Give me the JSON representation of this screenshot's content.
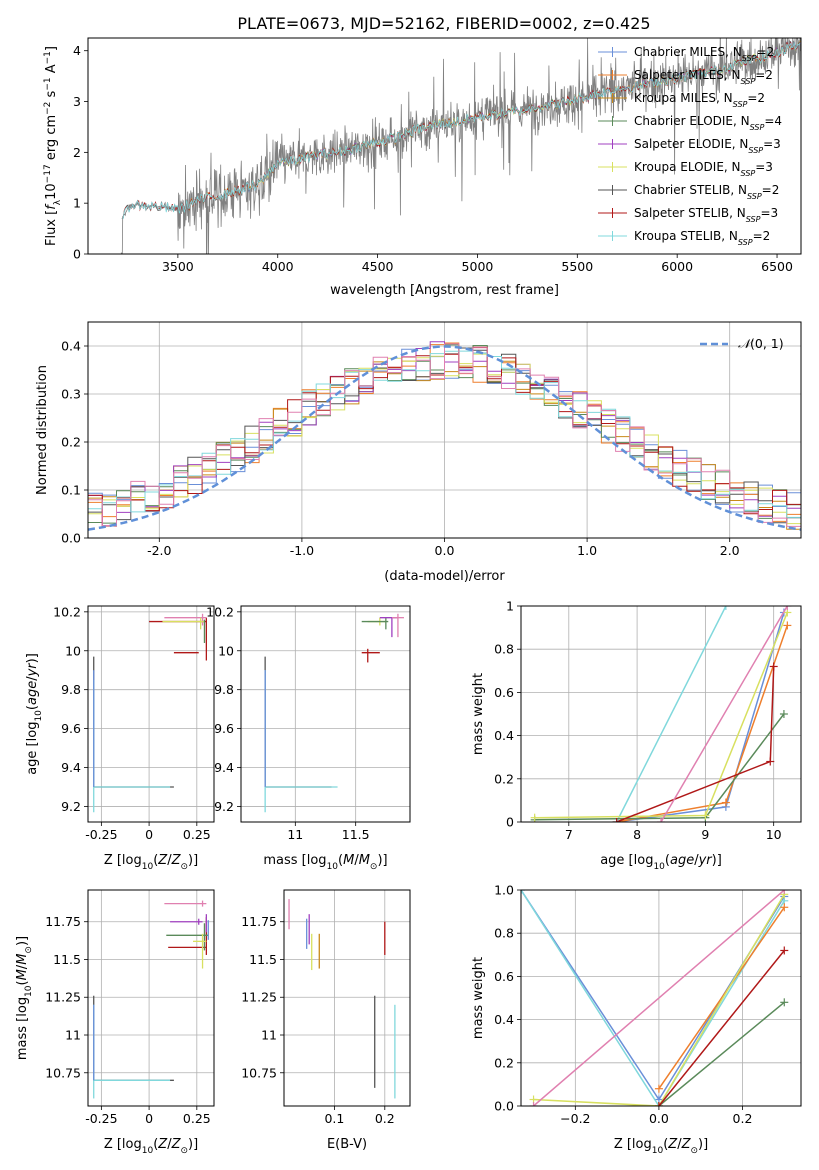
{
  "figure_title": "PLATE=0673, MJD=52162, FIBERID=0002, z=0.425",
  "colors": {
    "Chabrier MILES": "#6a8fd8",
    "Salpeter MILES": "#ee7f2d",
    "Kroupa MILES": "#c98a1a",
    "Chabrier ELODIE": "#5a8a5a",
    "Salpeter ELODIE": "#a040c0",
    "Kroupa ELODIE": "#d8e060",
    "Chabrier STELIB": "#555555",
    "Salpeter STELIB": "#b01818",
    "Kroupa STELIB": "#80d8dc",
    "Pink": "#e080b0",
    "Data": "#808080",
    "Normal": "#6090d8"
  },
  "chart_data": [
    {
      "id": "spectrum",
      "type": "line",
      "title": "PLATE=0673, MJD=52162, FIBERID=0002, z=0.425",
      "xlabel": "wavelength [Angstrom, rest frame]",
      "ylabel": "Flux [f_λ 10^-17 erg cm^-2 s^-1 A^-1]",
      "xlim": [
        3050,
        6620
      ],
      "ylim": [
        0,
        4.25
      ],
      "xticks": [
        3500,
        4000,
        4500,
        5000,
        5500,
        6000,
        6500
      ],
      "yticks": [
        0,
        1,
        2,
        3,
        4
      ],
      "legend": [
        "Chabrier MILES, N_SSP=2",
        "Salpeter MILES, N_SSP=2",
        "Kroupa MILES, N_SSP=2",
        "Chabrier ELODIE, N_SSP=4",
        "Salpeter ELODIE, N_SSP=3",
        "Kroupa ELODIE, N_SSP=3",
        "Chabrier STELIB, N_SSP=2",
        "Salpeter STELIB, N_SSP=3",
        "Kroupa STELIB, N_SSP=2"
      ],
      "legend_location": "right",
      "continuum": {
        "x": [
          3220,
          3260,
          3300,
          3400,
          3500,
          3600,
          3700,
          3800,
          3900,
          4000,
          4100,
          4200,
          4300,
          4400,
          4500,
          4600,
          4700,
          4800,
          4900,
          5000,
          5100,
          5200,
          5300,
          5400,
          5500,
          5600,
          5700,
          5800,
          5900,
          6000,
          6100,
          6200,
          6300,
          6400,
          6500,
          6560
        ],
        "y": [
          0.7,
          0.95,
          0.97,
          0.93,
          0.88,
          1.05,
          1.15,
          1.25,
          1.35,
          1.8,
          1.85,
          1.95,
          2.0,
          2.1,
          2.2,
          2.3,
          2.45,
          2.55,
          2.6,
          2.7,
          2.75,
          2.8,
          2.9,
          2.95,
          3.05,
          3.15,
          3.25,
          3.3,
          3.4,
          3.45,
          3.55,
          3.6,
          3.75,
          3.85,
          3.95,
          4.1
        ]
      },
      "noise_start": 3500
    },
    {
      "id": "residual-hist",
      "type": "area",
      "xlabel": "(data-model)/error",
      "ylabel": "Normed distribution",
      "xlim": [
        -2.5,
        2.5
      ],
      "ylim": [
        0,
        0.45
      ],
      "xticks": [
        -2,
        -1,
        0,
        1,
        2
      ],
      "yticks": [
        0.0,
        0.1,
        0.2,
        0.3,
        0.4
      ],
      "legend": [
        "N(0, 1)"
      ],
      "legend_location": "upper right",
      "bin_width": 0.1
    },
    {
      "id": "age-vs-Z",
      "type": "scatter",
      "xlabel": "Z [log10(Z/Z⊙)]",
      "ylabel": "age [log10(age/yr)]",
      "xlim": [
        -0.32,
        0.34
      ],
      "ylim": [
        9.12,
        10.23
      ],
      "xticks": [
        -0.25,
        0.0,
        0.25
      ],
      "yticks": [
        9.2,
        9.4,
        9.6,
        9.8,
        10.0,
        10.2
      ]
    },
    {
      "id": "age-vs-mass",
      "type": "scatter",
      "xlabel": "mass [log10(M/M⊙)]",
      "ylabel": "",
      "xlim": [
        10.55,
        11.95
      ],
      "ylim": [
        9.12,
        10.23
      ],
      "xticks": [
        11.0,
        11.5
      ],
      "yticks": [
        9.2,
        9.4,
        9.6,
        9.8,
        10.0,
        10.2
      ]
    },
    {
      "id": "weight-vs-age",
      "type": "line",
      "xlabel": "age [log10(age/yr)]",
      "ylabel": "mass weight",
      "xlim": [
        6.3,
        10.4
      ],
      "ylim": [
        0,
        1
      ],
      "xticks": [
        7,
        8,
        9,
        10
      ],
      "yticks": [
        0.0,
        0.2,
        0.4,
        0.6,
        0.8,
        1.0
      ],
      "series": [
        {
          "color": "Chabrier MILES",
          "x": [
            7.7,
            9.3,
            10.15
          ],
          "y": [
            0.0,
            0.07,
            0.97
          ]
        },
        {
          "color": "Salpeter MILES",
          "x": [
            7.7,
            9.3,
            10.2
          ],
          "y": [
            0.0,
            0.09,
            0.91
          ]
        },
        {
          "color": "Kroupa STELIB",
          "x": [
            7.7,
            9.3
          ],
          "y": [
            0.0,
            1.0
          ]
        },
        {
          "color": "Chabrier ELODIE",
          "x": [
            6.5,
            9.0,
            10.15
          ],
          "y": [
            0.01,
            0.02,
            0.5
          ]
        },
        {
          "color": "Kroupa ELODIE",
          "x": [
            6.5,
            9.0,
            10.2
          ],
          "y": [
            0.02,
            0.03,
            0.97
          ]
        },
        {
          "color": "Salpeter STELIB",
          "x": [
            7.7,
            9.95,
            10.0
          ],
          "y": [
            0.0,
            0.28,
            0.72
          ]
        },
        {
          "color": "Pink",
          "x": [
            8.35,
            10.2
          ],
          "y": [
            0.0,
            1.0
          ]
        }
      ]
    },
    {
      "id": "mass-vs-Z",
      "type": "scatter",
      "xlabel": "Z [log10(Z/Z⊙)]",
      "ylabel": "mass [log10(M/M⊙)]",
      "xlim": [
        -0.32,
        0.34
      ],
      "ylim": [
        10.53,
        11.96
      ],
      "xticks": [
        -0.25,
        0.0,
        0.25
      ],
      "yticks": [
        10.75,
        11.0,
        11.25,
        11.5,
        11.75
      ]
    },
    {
      "id": "mass-vs-ebv",
      "type": "scatter",
      "xlabel": "E(B-V)",
      "ylabel": "",
      "xlim": [
        0.0,
        0.25
      ],
      "ylim": [
        10.53,
        11.96
      ],
      "xticks": [
        0.1,
        0.2
      ],
      "yticks": [
        10.75,
        11.0,
        11.25,
        11.5,
        11.75
      ]
    },
    {
      "id": "weight-vs-Z",
      "type": "line",
      "xlabel": "Z [log10(Z/Z⊙)]",
      "ylabel": "mass weight",
      "xlim": [
        -0.33,
        0.34
      ],
      "ylim": [
        0,
        1
      ],
      "xticks": [
        -0.2,
        0.0,
        0.2
      ],
      "yticks": [
        0.0,
        0.2,
        0.4,
        0.6,
        0.8,
        1.0
      ],
      "series": [
        {
          "color": "Chabrier MILES",
          "x": [
            -0.33,
            0.0,
            0.3
          ],
          "y": [
            1.0,
            0.03,
            0.97
          ]
        },
        {
          "color": "Kroupa STELIB",
          "x": [
            -0.33,
            0.0,
            0.3
          ],
          "y": [
            1.0,
            0.0,
            0.95
          ]
        },
        {
          "color": "Salpeter MILES",
          "x": [
            0.0,
            0.3
          ],
          "y": [
            0.08,
            0.92
          ]
        },
        {
          "color": "Chabrier ELODIE",
          "x": [
            0.0,
            0.3
          ],
          "y": [
            0.0,
            0.48
          ]
        },
        {
          "color": "Kroupa ELODIE",
          "x": [
            -0.3,
            0.0,
            0.3
          ],
          "y": [
            0.03,
            0.0,
            0.98
          ]
        },
        {
          "color": "Salpeter STELIB",
          "x": [
            0.0,
            0.3
          ],
          "y": [
            0.0,
            0.72
          ]
        },
        {
          "color": "Pink",
          "x": [
            -0.3,
            0.3
          ],
          "y": [
            0.0,
            1.0
          ]
        }
      ]
    }
  ]
}
